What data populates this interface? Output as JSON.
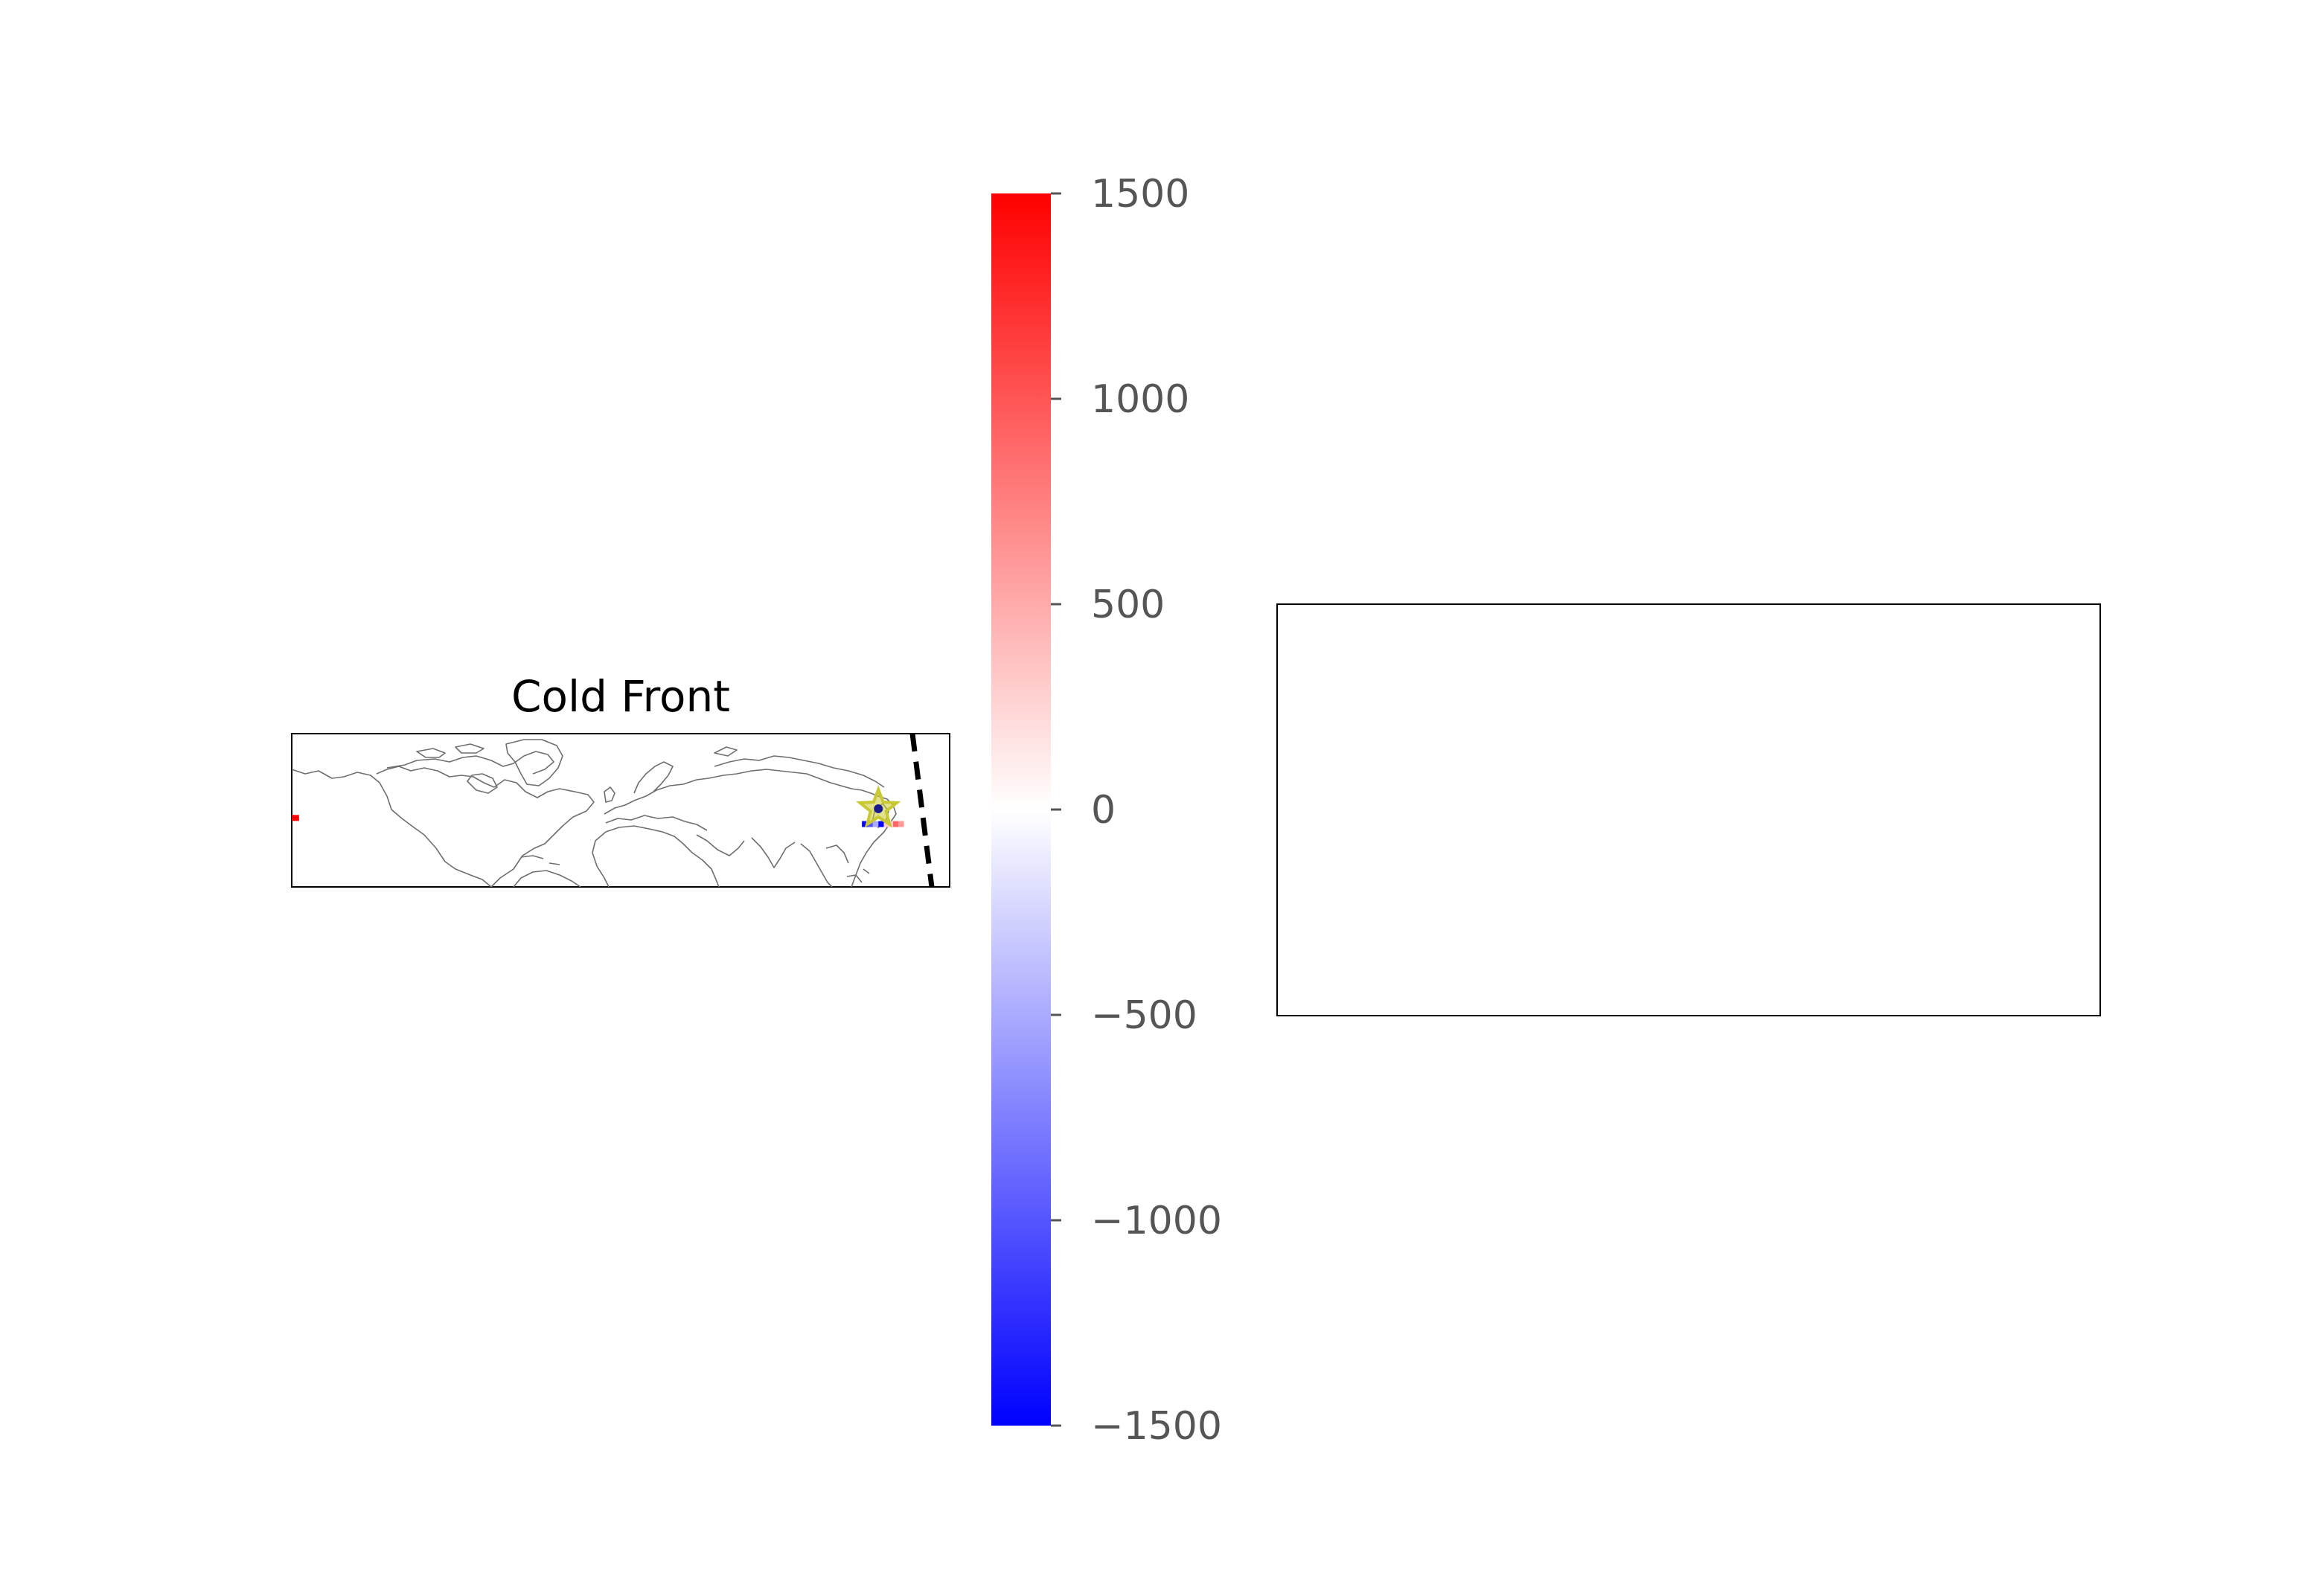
{
  "chart_data": [
    {
      "type": "map",
      "title": "Cold Front",
      "basemap": "world coastlines",
      "front_line": {
        "style": "dashed",
        "color": "#000000"
      },
      "marker": {
        "shape": "star",
        "fill_color": "#c8c832",
        "edge_color": "#1a1a8a",
        "lon": 141,
        "lat": 41
      },
      "colored_segments": [
        {
          "lon_start": -180,
          "lon_end": -176,
          "lat": 35,
          "value": 1500
        },
        {
          "lon_start": 132,
          "lon_end": 135,
          "lat": 31,
          "value": -1500
        },
        {
          "lon_start": 135,
          "lon_end": 138,
          "lat": 31,
          "value": -1000
        },
        {
          "lon_start": 138,
          "lon_end": 141,
          "lat": 31,
          "value": -500
        },
        {
          "lon_start": 141,
          "lon_end": 144,
          "lat": 31,
          "value": -1500
        },
        {
          "lon_start": 144,
          "lon_end": 149,
          "lat": 31,
          "value": 300
        },
        {
          "lon_start": 149,
          "lon_end": 152,
          "lat": 31,
          "value": 900
        },
        {
          "lon_start": 152,
          "lon_end": 155,
          "lat": 31,
          "value": 600
        }
      ]
    },
    {
      "type": "colorbar",
      "colormap": "bwr",
      "colors": {
        "low": "#0000ff",
        "mid": "#ffffff",
        "high": "#ff0000"
      },
      "range": [
        -1500,
        1500
      ],
      "ticks": [
        1500,
        1000,
        500,
        0,
        -500,
        -1000,
        -1500
      ],
      "tick_labels": [
        "1500",
        "1000",
        "500",
        "0",
        "−500",
        "−1000",
        "−1500"
      ]
    },
    {
      "type": "empty-axes",
      "content": []
    }
  ]
}
